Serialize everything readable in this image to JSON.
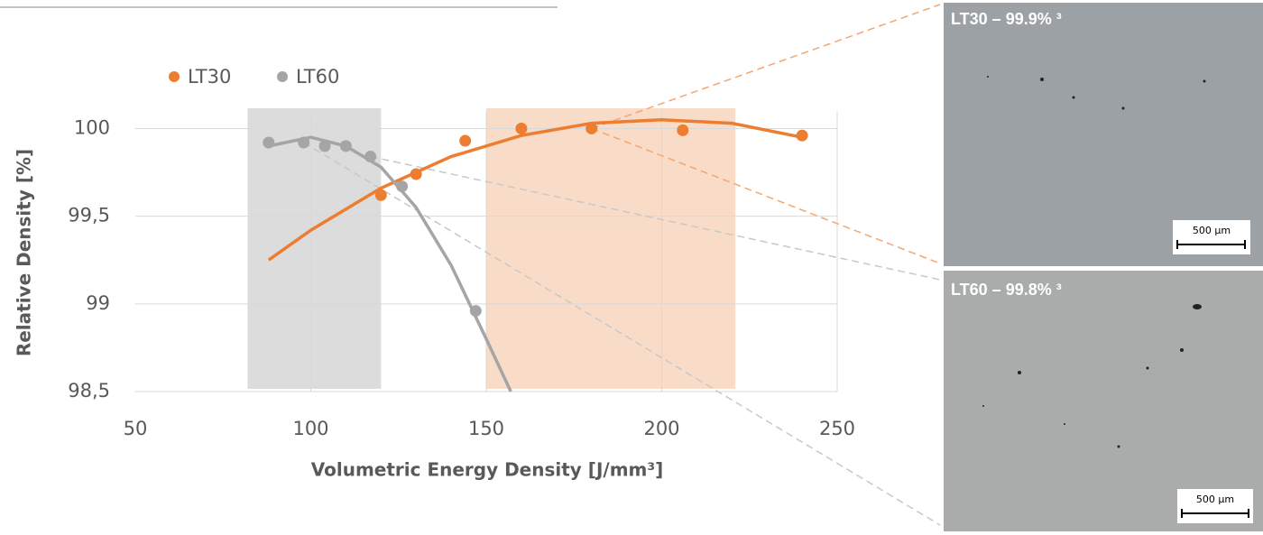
{
  "chart_data": {
    "type": "scatter",
    "x_label": "Volumetric Energy Density [J/mm³]",
    "y_label": "Relative Density [%]",
    "xlim": [
      50,
      250
    ],
    "xticks": [
      50,
      100,
      150,
      200,
      250
    ],
    "ylim": [
      98.5,
      100.1
    ],
    "yticks": [
      {
        "value": 98.5,
        "label": "98,5"
      },
      99,
      {
        "value": 99.5,
        "label": "99,5"
      },
      100
    ],
    "grid": true,
    "legend": "top-left",
    "highlight_ranges": [
      {
        "xlim": [
          82,
          120
        ],
        "color": "#dcdcdc"
      },
      {
        "xlim": [
          150,
          221
        ],
        "color": "#f8dcc8"
      }
    ],
    "series": [
      {
        "name": "LT30",
        "color": "#ed7d31",
        "x": [
          120,
          130,
          144,
          160,
          180,
          206,
          240
        ],
        "values": [
          99.62,
          99.74,
          99.93,
          100.0,
          100.0,
          99.99,
          99.96
        ],
        "trend": {
          "x": [
            88,
            100,
            120,
            140,
            160,
            180,
            200,
            220,
            240
          ],
          "values": [
            99.25,
            99.42,
            99.66,
            99.84,
            99.96,
            100.03,
            100.05,
            100.03,
            99.95
          ]
        }
      },
      {
        "name": "LT60",
        "color": "#a5a5a5",
        "x": [
          88,
          98,
          104,
          110,
          117,
          126,
          147
        ],
        "values": [
          99.92,
          99.92,
          99.9,
          99.9,
          99.84,
          99.67,
          98.96
        ],
        "trend": {
          "x": [
            88,
            100,
            110,
            120,
            130,
            140,
            150,
            157
          ],
          "values": [
            99.9,
            99.95,
            99.9,
            99.78,
            99.55,
            99.22,
            98.8,
            98.5
          ]
        }
      }
    ]
  },
  "panels": [
    {
      "label": "LT30 – 99.9% ³",
      "scale": "500 µm"
    },
    {
      "label": "LT60 – 99.8% ³",
      "scale": "500 µm"
    }
  ]
}
